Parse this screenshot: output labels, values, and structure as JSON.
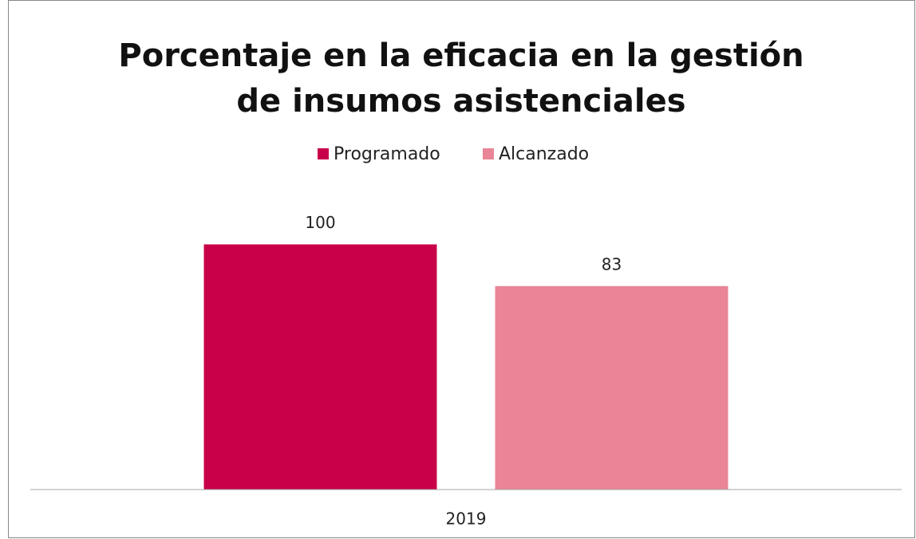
{
  "chart_data": {
    "type": "bar",
    "title": [
      "Porcentaje en la eficacia en la gestión",
      "de insumos asistenciales"
    ],
    "categories": [
      "2019"
    ],
    "series": [
      {
        "name": "Programado",
        "color": "#c8004a",
        "values": [
          100
        ]
      },
      {
        "name": "Alcanzado",
        "color": "#e98596",
        "values": [
          83
        ]
      }
    ],
    "ylim": [
      0,
      120
    ],
    "legend": "top"
  }
}
